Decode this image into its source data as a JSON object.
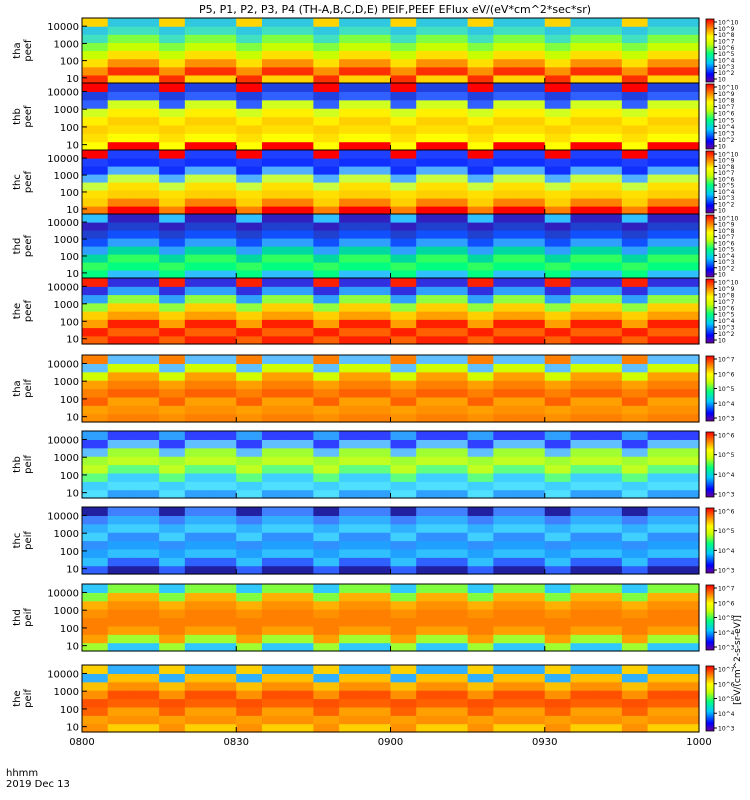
{
  "figure": {
    "title": "P5, P1, P2, P3, P4 (TH-A,B,C,D,E) PEIF,PEEF EFlux eV/(eV*cm^2*sec*sr)",
    "time_label": "hhmm",
    "date_label": "2019 Dec 13",
    "colorbar_unit_label": "[eV/(cm^2-s-sr-eV)]"
  },
  "chart_data": [
    {
      "type": "heatmap",
      "label": "tha peef",
      "x": [
        "0800",
        "0830",
        "0900",
        "0930",
        "1000"
      ],
      "yticks": [
        "10",
        "100",
        "1000",
        "10000"
      ],
      "ylim": [
        5,
        30000
      ],
      "scale": "log",
      "colorbar_ticks": [
        "10",
        "10^2",
        "10^3",
        "10^4",
        "10^5",
        "10^6",
        "10^7",
        "10^8",
        "10^9",
        "10^10"
      ]
    },
    {
      "type": "heatmap",
      "label": "thb peef",
      "x": [
        "0800",
        "0830",
        "0900",
        "0930",
        "1000"
      ],
      "yticks": [
        "10",
        "100",
        "1000",
        "10000"
      ],
      "ylim": [
        5,
        30000
      ],
      "scale": "log",
      "colorbar_ticks": [
        "10",
        "10^2",
        "10^3",
        "10^4",
        "10^5",
        "10^6",
        "10^7",
        "10^8",
        "10^9",
        "10^10"
      ]
    },
    {
      "type": "heatmap",
      "label": "thc peef",
      "x": [
        "0800",
        "0830",
        "0900",
        "0930",
        "1000"
      ],
      "yticks": [
        "10",
        "100",
        "1000",
        "10000"
      ],
      "ylim": [
        5,
        30000
      ],
      "scale": "log",
      "colorbar_ticks": [
        "10",
        "10^2",
        "10^3",
        "10^4",
        "10^5",
        "10^6",
        "10^7",
        "10^8",
        "10^9",
        "10^10"
      ]
    },
    {
      "type": "heatmap",
      "label": "thd peef",
      "x": [
        "0800",
        "0830",
        "0900",
        "0930",
        "1000"
      ],
      "yticks": [
        "10",
        "100",
        "1000",
        "10000"
      ],
      "ylim": [
        5,
        30000
      ],
      "scale": "log",
      "colorbar_ticks": [
        "10",
        "10^2",
        "10^3",
        "10^4",
        "10^5",
        "10^6",
        "10^7",
        "10^8",
        "10^9",
        "10^10"
      ]
    },
    {
      "type": "heatmap",
      "label": "the peef",
      "x": [
        "0800",
        "0830",
        "0900",
        "0930",
        "1000"
      ],
      "yticks": [
        "10",
        "100",
        "1000",
        "10000"
      ],
      "ylim": [
        5,
        30000
      ],
      "scale": "log",
      "colorbar_ticks": [
        "10",
        "10^2",
        "10^3",
        "10^4",
        "10^5",
        "10^6",
        "10^7",
        "10^8",
        "10^9",
        "10^10"
      ]
    },
    {
      "type": "heatmap",
      "label": "tha peif",
      "x": [
        "0800",
        "0830",
        "0900",
        "0930",
        "1000"
      ],
      "yticks": [
        "10",
        "100",
        "1000",
        "10000"
      ],
      "ylim": [
        5,
        30000
      ],
      "scale": "log",
      "colorbar_ticks": [
        "10^3",
        "10^4",
        "10^5",
        "10^6",
        "10^7"
      ]
    },
    {
      "type": "heatmap",
      "label": "thb peif",
      "x": [
        "0800",
        "0830",
        "0900",
        "0930",
        "1000"
      ],
      "yticks": [
        "10",
        "100",
        "1000",
        "10000"
      ],
      "ylim": [
        5,
        30000
      ],
      "scale": "log",
      "colorbar_ticks": [
        "10^3",
        "10^4",
        "10^5",
        "10^6"
      ]
    },
    {
      "type": "heatmap",
      "label": "thc peif",
      "x": [
        "0800",
        "0830",
        "0900",
        "0930",
        "1000"
      ],
      "yticks": [
        "10",
        "100",
        "1000",
        "10000"
      ],
      "ylim": [
        5,
        30000
      ],
      "scale": "log",
      "colorbar_ticks": [
        "10^3",
        "10^4",
        "10^5",
        "10^6"
      ]
    },
    {
      "type": "heatmap",
      "label": "thd peif",
      "x": [
        "0800",
        "0830",
        "0900",
        "0930",
        "1000"
      ],
      "yticks": [
        "10",
        "100",
        "1000",
        "10000"
      ],
      "ylim": [
        5,
        30000
      ],
      "scale": "log",
      "colorbar_ticks": [
        "10^3",
        "10^4",
        "10^5",
        "10^6",
        "10^7"
      ]
    },
    {
      "type": "heatmap",
      "label": "the peif",
      "x": [
        "0800",
        "0830",
        "0900",
        "0930",
        "1000"
      ],
      "yticks": [
        "10",
        "100",
        "1000",
        "10000"
      ],
      "ylim": [
        5,
        30000
      ],
      "scale": "log",
      "colorbar_ticks": [
        "10^3",
        "10^4",
        "10^5",
        "10^6",
        "10^7"
      ]
    }
  ]
}
